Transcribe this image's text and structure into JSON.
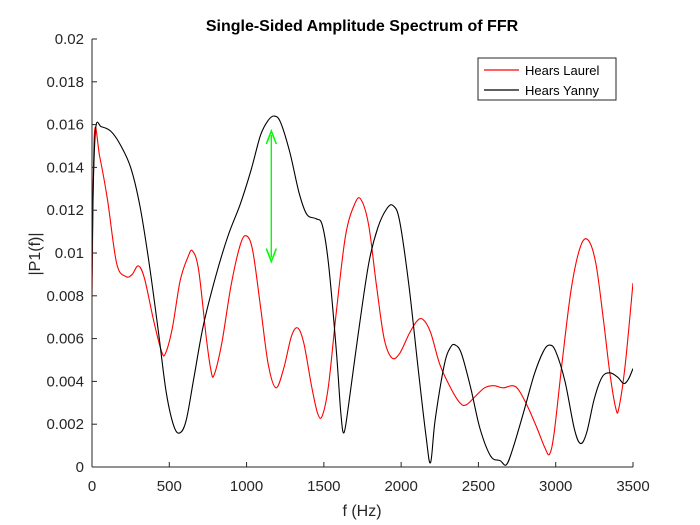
{
  "chart_data": {
    "type": "line",
    "title": "Single-Sided Amplitude Spectrum of FFR",
    "xlabel": "f (Hz)",
    "ylabel": "|P1(f)|",
    "xlim": [
      0,
      3500
    ],
    "ylim": [
      0,
      0.02
    ],
    "x_ticks": [
      "0",
      "500",
      "1000",
      "1500",
      "2000",
      "2500",
      "3000",
      "3500"
    ],
    "y_ticks": [
      "0",
      "0.002",
      "0.004",
      "0.006",
      "0.008",
      "0.01",
      "0.012",
      "0.014",
      "0.016",
      "0.018",
      "0.02"
    ],
    "grid": false,
    "legend_position": "top-right",
    "series": [
      {
        "name": "Hears Laurel",
        "color": "#ff0000",
        "points": [
          [
            0,
            0.0079
          ],
          [
            15,
            0.0155
          ],
          [
            50,
            0.0145
          ],
          [
            100,
            0.0125
          ],
          [
            160,
            0.0095
          ],
          [
            220,
            0.0089
          ],
          [
            260,
            0.009
          ],
          [
            300,
            0.0094
          ],
          [
            340,
            0.0088
          ],
          [
            400,
            0.0068
          ],
          [
            450,
            0.0054
          ],
          [
            475,
            0.0053
          ],
          [
            520,
            0.0065
          ],
          [
            570,
            0.0087
          ],
          [
            620,
            0.0098
          ],
          [
            650,
            0.0101
          ],
          [
            690,
            0.0092
          ],
          [
            740,
            0.006
          ],
          [
            770,
            0.0045
          ],
          [
            790,
            0.0043
          ],
          [
            840,
            0.0058
          ],
          [
            900,
            0.0085
          ],
          [
            960,
            0.0104
          ],
          [
            1000,
            0.0108
          ],
          [
            1040,
            0.0101
          ],
          [
            1090,
            0.0075
          ],
          [
            1140,
            0.0048
          ],
          [
            1190,
            0.0037
          ],
          [
            1240,
            0.0046
          ],
          [
            1290,
            0.0061
          ],
          [
            1330,
            0.0065
          ],
          [
            1370,
            0.0058
          ],
          [
            1420,
            0.0038
          ],
          [
            1460,
            0.0025
          ],
          [
            1490,
            0.0024
          ],
          [
            1530,
            0.0038
          ],
          [
            1580,
            0.0072
          ],
          [
            1640,
            0.0108
          ],
          [
            1700,
            0.0123
          ],
          [
            1740,
            0.0125
          ],
          [
            1790,
            0.0113
          ],
          [
            1840,
            0.0085
          ],
          [
            1890,
            0.006
          ],
          [
            1940,
            0.0051
          ],
          [
            1990,
            0.0053
          ],
          [
            2050,
            0.0062
          ],
          [
            2100,
            0.0068
          ],
          [
            2140,
            0.0069
          ],
          [
            2190,
            0.0063
          ],
          [
            2250,
            0.0048
          ],
          [
            2320,
            0.0037
          ],
          [
            2380,
            0.003
          ],
          [
            2420,
            0.0029
          ],
          [
            2480,
            0.0033
          ],
          [
            2540,
            0.0037
          ],
          [
            2600,
            0.0038
          ],
          [
            2660,
            0.0037
          ],
          [
            2720,
            0.0038
          ],
          [
            2760,
            0.0036
          ],
          [
            2820,
            0.0028
          ],
          [
            2880,
            0.0018
          ],
          [
            2930,
            0.0009
          ],
          [
            2960,
            0.0006
          ],
          [
            2990,
            0.0016
          ],
          [
            3040,
            0.0048
          ],
          [
            3100,
            0.0083
          ],
          [
            3160,
            0.0103
          ],
          [
            3210,
            0.0106
          ],
          [
            3260,
            0.0095
          ],
          [
            3310,
            0.0068
          ],
          [
            3350,
            0.0044
          ],
          [
            3390,
            0.0027
          ],
          [
            3410,
            0.0028
          ],
          [
            3450,
            0.0048
          ],
          [
            3500,
            0.0086
          ]
        ]
      },
      {
        "name": "Hears Yanny",
        "color": "#000000",
        "points": [
          [
            0,
            0.0089
          ],
          [
            8,
            0.0131
          ],
          [
            25,
            0.0159
          ],
          [
            60,
            0.0159
          ],
          [
            120,
            0.0157
          ],
          [
            180,
            0.0151
          ],
          [
            250,
            0.014
          ],
          [
            310,
            0.0122
          ],
          [
            370,
            0.0095
          ],
          [
            430,
            0.0063
          ],
          [
            480,
            0.0035
          ],
          [
            530,
            0.0019
          ],
          [
            570,
            0.0016
          ],
          [
            610,
            0.0022
          ],
          [
            660,
            0.0042
          ],
          [
            720,
            0.0066
          ],
          [
            800,
            0.0089
          ],
          [
            880,
            0.0108
          ],
          [
            960,
            0.0123
          ],
          [
            1030,
            0.0139
          ],
          [
            1090,
            0.0155
          ],
          [
            1140,
            0.0162
          ],
          [
            1180,
            0.0164
          ],
          [
            1220,
            0.0161
          ],
          [
            1280,
            0.0147
          ],
          [
            1340,
            0.0128
          ],
          [
            1390,
            0.0118
          ],
          [
            1450,
            0.0116
          ],
          [
            1490,
            0.0113
          ],
          [
            1530,
            0.0095
          ],
          [
            1580,
            0.0055
          ],
          [
            1610,
            0.0025
          ],
          [
            1630,
            0.0016
          ],
          [
            1660,
            0.0029
          ],
          [
            1720,
            0.0061
          ],
          [
            1790,
            0.0095
          ],
          [
            1850,
            0.0112
          ],
          [
            1910,
            0.0121
          ],
          [
            1950,
            0.0122
          ],
          [
            1990,
            0.0115
          ],
          [
            2050,
            0.0085
          ],
          [
            2110,
            0.0046
          ],
          [
            2160,
            0.0015
          ],
          [
            2190,
            0.0002
          ],
          [
            2220,
            0.0022
          ],
          [
            2280,
            0.0048
          ],
          [
            2320,
            0.0056
          ],
          [
            2350,
            0.0057
          ],
          [
            2390,
            0.0053
          ],
          [
            2450,
            0.0037
          ],
          [
            2510,
            0.0018
          ],
          [
            2580,
            0.0005
          ],
          [
            2640,
            0.0003
          ],
          [
            2680,
            0.0001
          ],
          [
            2720,
            0.0008
          ],
          [
            2790,
            0.0025
          ],
          [
            2860,
            0.0043
          ],
          [
            2920,
            0.0054
          ],
          [
            2960,
            0.0057
          ],
          [
            3000,
            0.0054
          ],
          [
            3060,
            0.004
          ],
          [
            3120,
            0.0018
          ],
          [
            3160,
            0.0011
          ],
          [
            3200,
            0.0016
          ],
          [
            3250,
            0.0032
          ],
          [
            3300,
            0.0042
          ],
          [
            3350,
            0.0044
          ],
          [
            3400,
            0.0042
          ],
          [
            3440,
            0.0039
          ],
          [
            3470,
            0.0041
          ],
          [
            3500,
            0.0046
          ]
        ]
      }
    ],
    "annotation": {
      "type": "double-arrow",
      "color": "#00ff00",
      "x": 1160,
      "y_range": [
        0.0096,
        0.0157
      ]
    }
  }
}
